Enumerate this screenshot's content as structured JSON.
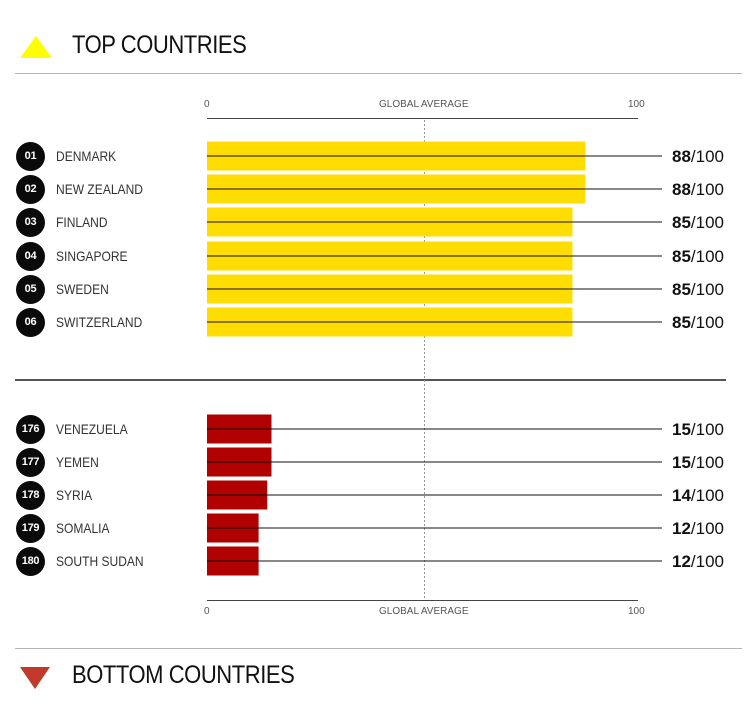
{
  "top_section": {
    "title": "TOP COUNTRIES",
    "icon": "triangle-up-icon",
    "icon_color": "#ffff00"
  },
  "bottom_section": {
    "title": "BOTTOM COUNTRIES",
    "icon": "triangle-down-icon",
    "icon_color": "#c0392b"
  },
  "axis": {
    "min_label": "0",
    "mid_label": "GLOBAL AVERAGE",
    "max_label": "100"
  },
  "score_suffix": "/100",
  "chart_data": {
    "type": "bar",
    "xlim": [
      0,
      100
    ],
    "max_score": 100,
    "top_color": "#ffdd00",
    "bottom_color": "#b00000",
    "top": [
      {
        "rank": "01",
        "country": "DENMARK",
        "score": 88
      },
      {
        "rank": "02",
        "country": "NEW ZEALAND",
        "score": 88
      },
      {
        "rank": "03",
        "country": "FINLAND",
        "score": 85
      },
      {
        "rank": "04",
        "country": "SINGAPORE",
        "score": 85
      },
      {
        "rank": "05",
        "country": "SWEDEN",
        "score": 85
      },
      {
        "rank": "06",
        "country": "SWITZERLAND",
        "score": 85
      }
    ],
    "bottom": [
      {
        "rank": "176",
        "country": "VENEZUELA",
        "score": 15
      },
      {
        "rank": "177",
        "country": "YEMEN",
        "score": 15
      },
      {
        "rank": "178",
        "country": "SYRIA",
        "score": 14
      },
      {
        "rank": "179",
        "country": "SOMALIA",
        "score": 12
      },
      {
        "rank": "180",
        "country": "SOUTH SUDAN",
        "score": 12
      }
    ]
  }
}
